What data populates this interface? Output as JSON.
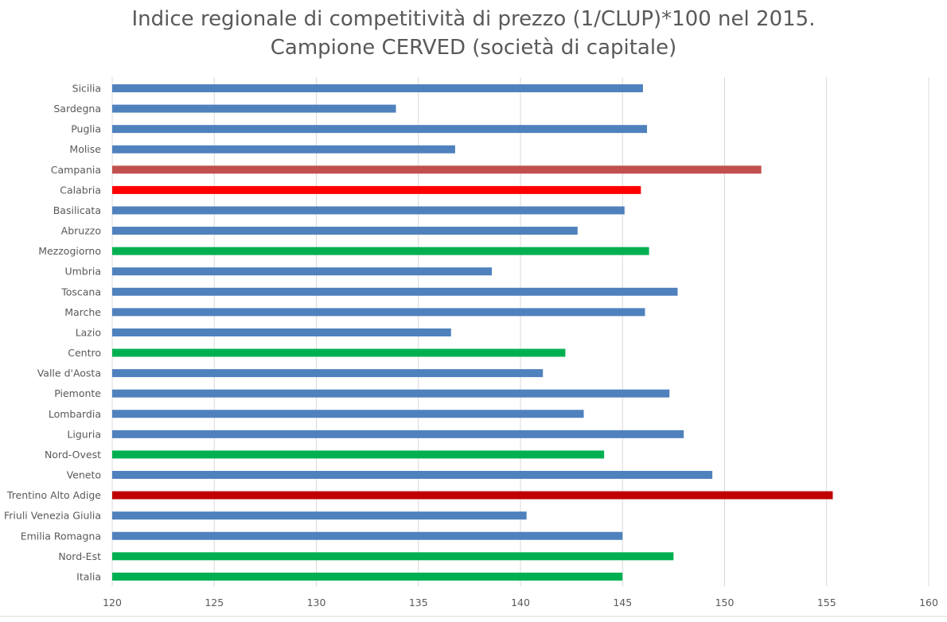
{
  "chart_data": {
    "type": "bar",
    "orientation": "horizontal",
    "title": "Indice regionale di competitività di prezzo (1/CLUP)*100 nel 2015.",
    "subtitle": "Campione CERVED (società di capitale)",
    "xlabel": "",
    "ylabel": "",
    "xlim": [
      120,
      160
    ],
    "x_ticks": [
      120,
      125,
      130,
      135,
      140,
      145,
      150,
      155,
      160
    ],
    "grid": "vertical",
    "legend": "none",
    "categories": [
      "Sicilia",
      "Sardegna",
      "Puglia",
      "Molise",
      "Campania",
      "Calabria",
      "Basilicata",
      "Abruzzo",
      "Mezzogiorno",
      "Umbria",
      "Toscana",
      "Marche",
      "Lazio",
      "Centro",
      "Valle d'Aosta",
      "Piemonte",
      "Lombardia",
      "Liguria",
      "Nord-Ovest",
      "Veneto",
      "Trentino Alto Adige",
      "Friuli Venezia Giulia",
      "Emilia Romagna",
      "Nord-Est",
      "Italia"
    ],
    "values": [
      146.0,
      133.9,
      146.2,
      136.8,
      151.8,
      145.9,
      145.1,
      142.8,
      146.3,
      138.6,
      147.7,
      146.1,
      136.6,
      142.2,
      141.1,
      147.3,
      143.1,
      148.0,
      144.1,
      149.4,
      155.3,
      140.3,
      145.0,
      147.5,
      145.0
    ],
    "colors": [
      "#4f81bd",
      "#4f81bd",
      "#4f81bd",
      "#4f81bd",
      "#c0504d",
      "#ff0000",
      "#4f81bd",
      "#4f81bd",
      "#00b050",
      "#4f81bd",
      "#4f81bd",
      "#4f81bd",
      "#4f81bd",
      "#00b050",
      "#4f81bd",
      "#4f81bd",
      "#4f81bd",
      "#4f81bd",
      "#00b050",
      "#4f81bd",
      "#c00000",
      "#4f81bd",
      "#4f81bd",
      "#00b050",
      "#00b050"
    ]
  }
}
